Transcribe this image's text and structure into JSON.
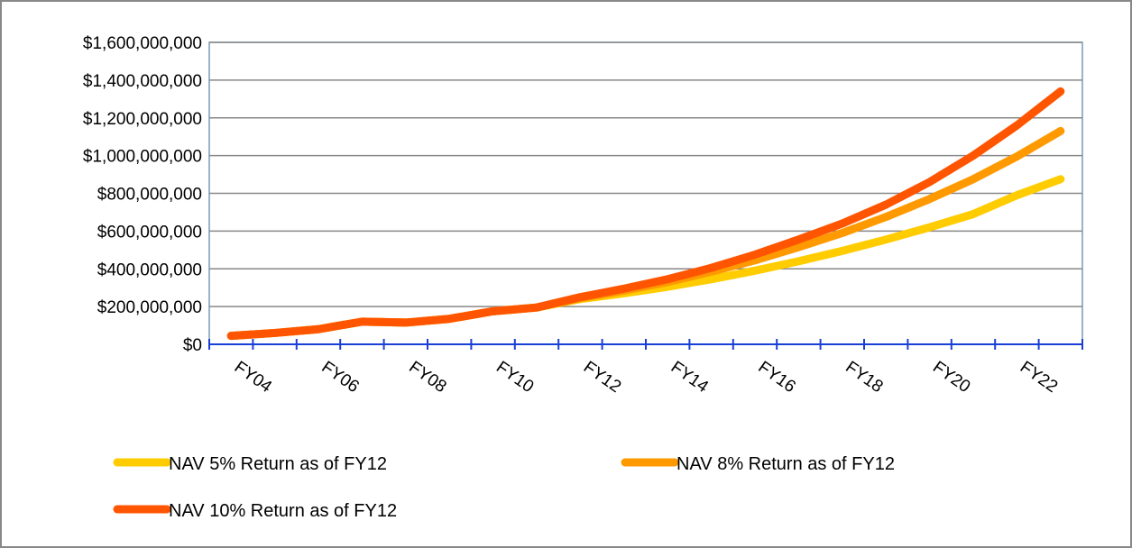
{
  "chart_data": {
    "type": "line",
    "categories": [
      null,
      "FY04",
      null,
      "FY06",
      null,
      "FY08",
      null,
      "FY10",
      null,
      "FY12",
      null,
      "FY14",
      null,
      "FY16",
      null,
      "FY18",
      null,
      "FY20",
      null,
      "FY22"
    ],
    "series": [
      {
        "name": "NAV 5% Return as of FY12",
        "color": "#ffcc00",
        "values": [
          45,
          60,
          80,
          120,
          115,
          135,
          175,
          195,
          240,
          270,
          305,
          345,
          390,
          440,
          495,
          555,
          620,
          690,
          790,
          875
        ]
      },
      {
        "name": "NAV 8% Return as of FY12",
        "color": "#ff9900",
        "values": [
          45,
          60,
          80,
          120,
          115,
          135,
          175,
          195,
          245,
          285,
          330,
          385,
          445,
          515,
          590,
          675,
          770,
          875,
          995,
          1130
        ]
      },
      {
        "name": "NAV 10% Return as of FY12",
        "color": "#ff5500",
        "values": [
          45,
          60,
          80,
          120,
          115,
          135,
          175,
          195,
          250,
          295,
          345,
          405,
          475,
          555,
          640,
          740,
          860,
          1000,
          1160,
          1340
        ]
      }
    ],
    "ylim": [
      0,
      1600
    ],
    "yticks": [
      {
        "value": 0,
        "label": "$0"
      },
      {
        "value": 200,
        "label": "$200,000,000"
      },
      {
        "value": 400,
        "label": "$400,000,000"
      },
      {
        "value": 600,
        "label": "$600,000,000"
      },
      {
        "value": 800,
        "label": "$800,000,000"
      },
      {
        "value": 1000,
        "label": "$1,000,000,000"
      },
      {
        "value": 1200,
        "label": "$1,200,000,000"
      },
      {
        "value": 1400,
        "label": "$1,400,000,000"
      },
      {
        "value": 1600,
        "label": "$1,600,000,000"
      }
    ],
    "grid": true,
    "legend": "bottom"
  }
}
